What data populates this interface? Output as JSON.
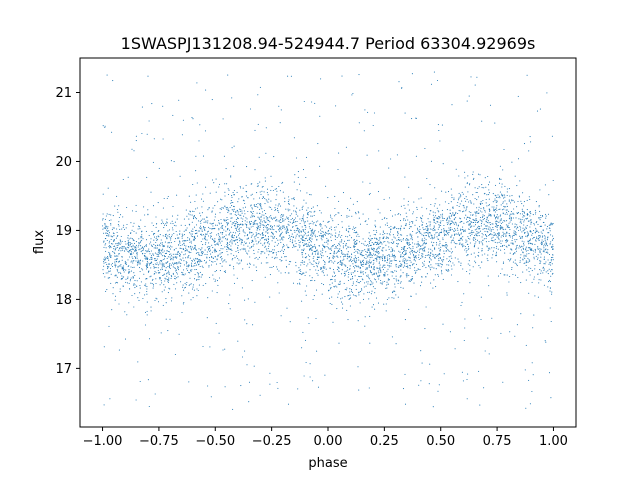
{
  "chart_data": {
    "type": "scatter",
    "title": "1SWASPJ131208.94-524944.7 Period 63304.92969s",
    "xlabel": "phase",
    "ylabel": "flux",
    "xlim": [
      -1.1,
      1.1
    ],
    "ylim": [
      16.15,
      21.5
    ],
    "xticks": [
      -1.0,
      -0.75,
      -0.5,
      -0.25,
      0.0,
      0.25,
      0.5,
      0.75,
      1.0
    ],
    "xtick_labels": [
      "−1.00",
      "−0.75",
      "−0.50",
      "−0.25",
      "0.00",
      "0.25",
      "0.50",
      "0.75",
      "1.00"
    ],
    "yticks": [
      17,
      18,
      19,
      20,
      21
    ],
    "ytick_labels": [
      "17",
      "18",
      "19",
      "20",
      "21"
    ],
    "grid": false,
    "marker_color": "#1f77b4",
    "series": [
      {
        "x": [
          -1.0,
          -0.9,
          -0.8,
          -0.7,
          -0.6,
          -0.5,
          -0.4,
          -0.3,
          -0.2,
          -0.1,
          0.0,
          0.1,
          0.2,
          0.3,
          0.4,
          0.5,
          0.6,
          0.7,
          0.8,
          0.9,
          1.0
        ],
        "y": [
          18.72,
          18.62,
          18.58,
          18.62,
          18.72,
          18.88,
          19.02,
          19.1,
          19.02,
          18.86,
          18.68,
          18.6,
          18.58,
          18.62,
          18.74,
          18.9,
          19.04,
          19.12,
          19.02,
          18.86,
          18.72
        ]
      }
    ]
  }
}
